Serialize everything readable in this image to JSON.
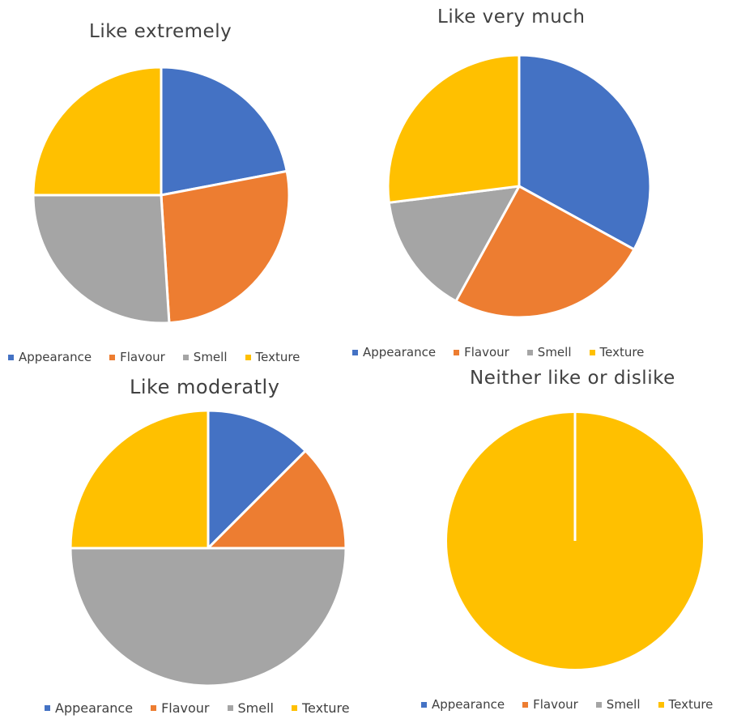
{
  "colors": {
    "Appearance": "#4472C4",
    "Flavour": "#ED7D31",
    "Smell": "#A5A5A5",
    "Texture": "#FFC000"
  },
  "chart_data": [
    {
      "type": "pie",
      "title": "Like extremely",
      "categories": [
        "Appearance",
        "Flavour",
        "Smell",
        "Texture"
      ],
      "values": [
        22,
        27,
        26,
        25
      ],
      "legend": "bottom"
    },
    {
      "type": "pie",
      "title": "Like very much",
      "categories": [
        "Appearance",
        "Flavour",
        "Smell",
        "Texture"
      ],
      "values": [
        33,
        25,
        15,
        27
      ],
      "legend": "bottom"
    },
    {
      "type": "pie",
      "title": "Like moderatly",
      "categories": [
        "Appearance",
        "Flavour",
        "Smell",
        "Texture"
      ],
      "values": [
        12.5,
        12.5,
        50,
        25
      ],
      "legend": "bottom"
    },
    {
      "type": "pie",
      "title": "Neither like or dislike",
      "categories": [
        "Appearance",
        "Flavour",
        "Smell",
        "Texture"
      ],
      "values": [
        0,
        0,
        0,
        100
      ],
      "legend": "bottom"
    }
  ]
}
